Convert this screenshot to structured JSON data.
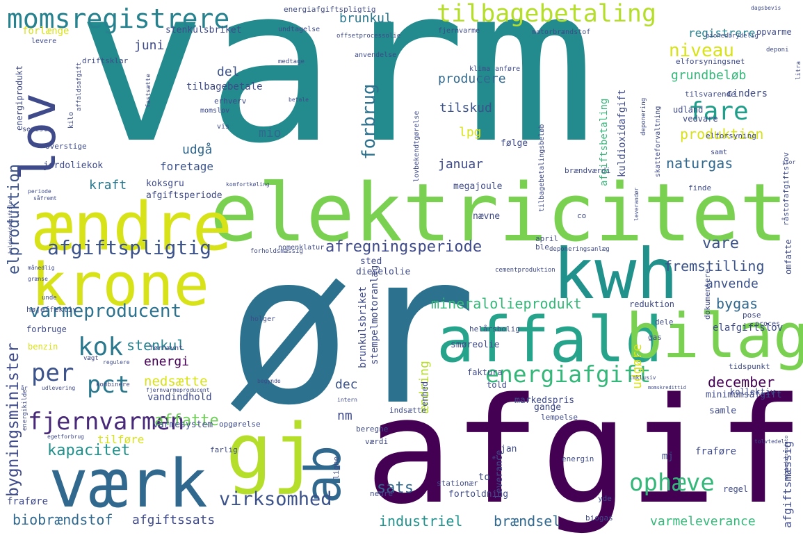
{
  "palette": {
    "background": "#ffffff",
    "purple": "#440154",
    "indigo": "#3b528b",
    "blue": "#31688e",
    "teal": "#21918c",
    "aqua": "#26a38b",
    "green": "#35b779",
    "lime": "#7ad151",
    "yellow": "#d8e219",
    "yellow2": "#fde725"
  },
  "words": [
    {
      "text": "varm",
      "weight": 1.0,
      "color": "#238a8d"
    },
    {
      "text": "ør",
      "weight": 0.93,
      "color": "#2c718e"
    },
    {
      "text": "afgift",
      "weight": 0.78,
      "color": "#440154"
    },
    {
      "text": "elektricitet",
      "weight": 0.52,
      "color": "#7ad151"
    },
    {
      "text": "ændre",
      "weight": 0.42,
      "color": "#d8e219"
    },
    {
      "text": "kwh",
      "weight": 0.4,
      "color": "#21918c"
    },
    {
      "text": "krone",
      "weight": 0.38,
      "color": "#d8e219"
    },
    {
      "text": "affald",
      "weight": 0.36,
      "color": "#26a38b"
    },
    {
      "text": "bilag",
      "weight": 0.36,
      "color": "#7ad151"
    },
    {
      "text": "værk",
      "weight": 0.33,
      "color": "#31688e"
    },
    {
      "text": "gj",
      "weight": 0.32,
      "color": "#b5de2b"
    },
    {
      "text": "ab",
      "weight": 0.3,
      "color": "#31688e"
    },
    {
      "text": "lov",
      "weight": 0.28,
      "color": "#3e4a89"
    },
    {
      "text": "momsregistrere",
      "weight": 0.2,
      "color": "#26828e"
    },
    {
      "text": "tilbagebetaling",
      "weight": 0.17,
      "color": "#b5de2b"
    },
    {
      "text": "fjernvarmen",
      "weight": 0.17,
      "color": "#482878"
    },
    {
      "text": "energiafgift",
      "weight": 0.16,
      "color": "#35b779"
    },
    {
      "text": "pct",
      "weight": 0.16,
      "color": "#2a788e"
    },
    {
      "text": "per",
      "weight": 0.16,
      "color": "#3b528b"
    },
    {
      "text": "ophæve",
      "weight": 0.15,
      "color": "#35b779"
    },
    {
      "text": "kok",
      "weight": 0.15,
      "color": "#2a788e"
    },
    {
      "text": "fare",
      "weight": 0.15,
      "color": "#1f9e89"
    },
    {
      "text": "afgiftspligtig",
      "weight": 0.14,
      "color": "#3b528b"
    },
    {
      "text": "varmeproducent",
      "weight": 0.13,
      "color": "#2c718e"
    },
    {
      "text": "virksomhed",
      "weight": 0.13,
      "color": "#3b528b"
    },
    {
      "text": "niveau",
      "weight": 0.12,
      "color": "#d8e219"
    },
    {
      "text": "forbrug",
      "weight": 0.12,
      "color": "#2c718e"
    },
    {
      "text": "bygningsminister",
      "weight": 0.11,
      "color": "#3e4a89"
    },
    {
      "text": "kapacitet",
      "weight": 0.11,
      "color": "#21918c"
    },
    {
      "text": "afregningsperiode",
      "weight": 0.11,
      "color": "#3e4a89"
    },
    {
      "text": "elproduktion",
      "weight": 0.11,
      "color": "#3b528b"
    },
    {
      "text": "affatte",
      "weight": 0.11,
      "color": "#6ece58"
    },
    {
      "text": "sats",
      "weight": 0.11,
      "color": "#31688e"
    },
    {
      "text": "biobrændstof",
      "weight": 0.1,
      "color": "#31688e"
    },
    {
      "text": "mineralolieprodukt",
      "weight": 0.1,
      "color": "#35b779"
    },
    {
      "text": "fremstilling",
      "weight": 0.1,
      "color": "#3b528b"
    },
    {
      "text": "industriel",
      "weight": 0.1,
      "color": "#21918c"
    },
    {
      "text": "brændsel",
      "weight": 0.1,
      "color": "#31688e"
    },
    {
      "text": "varmeleverance",
      "weight": 0.09,
      "color": "#35b779"
    },
    {
      "text": "produktion",
      "weight": 0.1,
      "color": "#d8e219"
    },
    {
      "text": "grundbeløb",
      "weight": 0.09,
      "color": "#35b779"
    },
    {
      "text": "naturgas",
      "weight": 0.09,
      "color": "#31688e"
    },
    {
      "text": "stenkul",
      "weight": 0.09,
      "color": "#26828e"
    },
    {
      "text": "december",
      "weight": 0.09,
      "color": "#440154"
    },
    {
      "text": "nedsætte",
      "weight": 0.09,
      "color": "#d8e219"
    },
    {
      "text": "vare",
      "weight": 0.09,
      "color": "#3b528b"
    },
    {
      "text": "anvende",
      "weight": 0.09,
      "color": "#3b528b"
    },
    {
      "text": "bygas",
      "weight": 0.09,
      "color": "#31688e"
    },
    {
      "text": "registrere",
      "weight": 0.08,
      "color": "#26828e"
    },
    {
      "text": "brunkul",
      "weight": 0.08,
      "color": "#2a788e"
    },
    {
      "text": "producere",
      "weight": 0.08,
      "color": "#31688e"
    },
    {
      "text": "tilskud",
      "weight": 0.08,
      "color": "#3b528b"
    },
    {
      "text": "januar",
      "weight": 0.08,
      "color": "#3e4a89"
    },
    {
      "text": "energi",
      "weight": 0.08,
      "color": "#440154"
    },
    {
      "text": "mio",
      "weight": 0.08,
      "color": "#31688e"
    },
    {
      "text": "udgå",
      "weight": 0.08,
      "color": "#31688e"
    },
    {
      "text": "kraft",
      "weight": 0.08,
      "color": "#2a788e"
    },
    {
      "text": "lpg",
      "weight": 0.08,
      "color": "#d8e219"
    },
    {
      "text": "juni",
      "weight": 0.07,
      "color": "#3e4a89"
    },
    {
      "text": "del",
      "weight": 0.07,
      "color": "#3b528b"
    },
    {
      "text": "dec",
      "weight": 0.07,
      "color": "#3b528b"
    },
    {
      "text": "nm",
      "weight": 0.07,
      "color": "#3e4a89"
    },
    {
      "text": "udgøre",
      "weight": 0.07,
      "color": "#d8e219"
    },
    {
      "text": "ændring",
      "weight": 0.07,
      "color": "#b5de2b"
    },
    {
      "text": "elafgiftslov",
      "weight": 0.06,
      "color": "#3e4a89"
    },
    {
      "text": "afgiftsmæssig",
      "weight": 0.06,
      "color": "#3e4a89"
    },
    {
      "text": "afgiftssats",
      "weight": 0.06,
      "color": "#3e4a89"
    },
    {
      "text": "tilføre",
      "weight": 0.06,
      "color": "#d8e219"
    },
    {
      "text": "vandindhold",
      "weight": 0.06,
      "color": "#3e4a89"
    },
    {
      "text": "foretage",
      "weight": 0.06,
      "color": "#3b528b"
    },
    {
      "text": "kuldioxidafgift",
      "weight": 0.06,
      "color": "#3e4a89"
    },
    {
      "text": "afgiftsbetaling",
      "weight": 0.06,
      "color": "#35b779"
    },
    {
      "text": "dieselolie",
      "weight": 0.05,
      "color": "#3e4a89"
    },
    {
      "text": "smøreolie",
      "weight": 0.05,
      "color": "#3e4a89"
    },
    {
      "text": "markedspris",
      "weight": 0.05,
      "color": "#3e4a89"
    },
    {
      "text": "minimumsafgift",
      "weight": 0.05,
      "color": "#3e4a89"
    },
    {
      "text": "tilbagebetale",
      "weight": 0.05,
      "color": "#3e4a89"
    },
    {
      "text": "stenkulsbriket",
      "weight": 0.05,
      "color": "#3e4a89"
    },
    {
      "text": "brunkulsbriket",
      "weight": 0.05,
      "color": "#3e4a89"
    },
    {
      "text": "stempelmotoranlæg",
      "weight": 0.05,
      "color": "#3e4a89"
    },
    {
      "text": "varmesystem",
      "weight": 0.05,
      "color": "#3e4a89"
    },
    {
      "text": "jordoliekok",
      "weight": 0.05,
      "color": "#3e4a89"
    },
    {
      "text": "koksgru",
      "weight": 0.05,
      "color": "#3e4a89"
    },
    {
      "text": "afgiftsperiode",
      "weight": 0.05,
      "color": "#3e4a89"
    },
    {
      "text": "megajoule",
      "weight": 0.05,
      "color": "#3e4a89"
    },
    {
      "text": "opvarme",
      "weight": 0.04,
      "color": "#3e4a89"
    },
    {
      "text": "udland",
      "weight": 0.04,
      "color": "#3e4a89"
    },
    {
      "text": "vedvare",
      "weight": 0.04,
      "color": "#3e4a89"
    },
    {
      "text": "cinders",
      "weight": 0.05,
      "color": "#3e4a89"
    },
    {
      "text": "forlænge",
      "weight": 0.05,
      "color": "#d8e219"
    },
    {
      "text": "energiprodukt",
      "weight": 0.05,
      "color": "#3e4a89"
    },
    {
      "text": "forbruge",
      "weight": 0.05,
      "color": "#3e4a89"
    },
    {
      "text": "benzin",
      "weight": 0.05,
      "color": "#d8e219"
    },
    {
      "text": "fraføre",
      "weight": 0.05,
      "color": "#3e4a89"
    },
    {
      "text": "fraføre",
      "weight": 0.05,
      "color": "#3e4a89"
    },
    {
      "text": "leverance",
      "weight": 0.05,
      "color": "#3e4a89"
    },
    {
      "text": "fortoldning",
      "weight": 0.05,
      "color": "#3e4a89"
    },
    {
      "text": "samle",
      "weight": 0.05,
      "color": "#3e4a89"
    },
    {
      "text": "gange",
      "weight": 0.05,
      "color": "#3e4a89"
    },
    {
      "text": "enhed",
      "weight": 0.04,
      "color": "#3e4a89"
    },
    {
      "text": "faktura",
      "weight": 0.04,
      "color": "#3e4a89"
    },
    {
      "text": "told",
      "weight": 0.04,
      "color": "#3e4a89"
    },
    {
      "text": "kollektiv",
      "weight": 0.04,
      "color": "#3e4a89"
    },
    {
      "text": "omfatte",
      "weight": 0.04,
      "color": "#3e4a89"
    },
    {
      "text": "reduktion",
      "weight": 0.04,
      "color": "#3e4a89"
    },
    {
      "text": "nævne",
      "weight": 0.04,
      "color": "#3e4a89"
    },
    {
      "text": "sted",
      "weight": 0.04,
      "color": "#3e4a89"
    },
    {
      "text": "følge",
      "weight": 0.04,
      "color": "#3e4a89"
    },
    {
      "text": "jan",
      "weight": 0.04,
      "color": "#3e4a89"
    },
    {
      "text": "mj",
      "weight": 0.04,
      "color": "#3e4a89"
    },
    {
      "text": "to",
      "weight": 0.04,
      "color": "#3e4a89"
    },
    {
      "text": "regel",
      "weight": 0.04,
      "color": "#3e4a89"
    },
    {
      "text": "yde",
      "weight": 0.03,
      "color": "#3e4a89"
    },
    {
      "text": "biogas",
      "weight": 0.03,
      "color": "#3e4a89"
    },
    {
      "text": "værdi",
      "weight": 0.03,
      "color": "#3e4a89"
    },
    {
      "text": "farlig",
      "weight": 0.03,
      "color": "#3e4a89"
    },
    {
      "text": "ligne",
      "weight": 0.03,
      "color": "#3e4a89"
    },
    {
      "text": "nedre",
      "weight": 0.03,
      "color": "#3e4a89"
    },
    {
      "text": "stationær",
      "weight": 0.03,
      "color": "#3e4a89"
    },
    {
      "text": "beregne",
      "weight": 0.03,
      "color": "#3e4a89"
    },
    {
      "text": "energin",
      "weight": 0.03,
      "color": "#3e4a89"
    },
    {
      "text": "opgørelse",
      "weight": 0.03,
      "color": "#3e4a89"
    },
    {
      "text": "indsætte",
      "weight": 0.03,
      "color": "#3e4a89"
    },
    {
      "text": "lempelse",
      "weight": 0.03,
      "color": "#3e4a89"
    },
    {
      "text": "dele",
      "weight": 0.03,
      "color": "#3e4a89"
    },
    {
      "text": "gas",
      "weight": 0.03,
      "color": "#3e4a89"
    },
    {
      "text": "tidspunkt",
      "weight": 0.03,
      "color": "#3e4a89"
    },
    {
      "text": "dokumentere",
      "weight": 0.03,
      "color": "#3e4a89"
    },
    {
      "text": "pose",
      "weight": 0.03,
      "color": "#3e4a89"
    },
    {
      "text": "proces",
      "weight": 0.03,
      "color": "#3e4a89"
    },
    {
      "text": "helårsbolig",
      "weight": 0.03,
      "color": "#3e4a89"
    },
    {
      "text": "holger",
      "weight": 0.03,
      "color": "#3e4a89"
    },
    {
      "text": "cementproduktion",
      "weight": 0.02,
      "color": "#3e4a89"
    },
    {
      "text": "april",
      "weight": 0.03,
      "color": "#3e4a89"
    },
    {
      "text": "ble",
      "weight": 0.03,
      "color": "#3e4a89"
    },
    {
      "text": "deponeringsanlæg",
      "weight": 0.02,
      "color": "#3e4a89"
    },
    {
      "text": "nomenklatur",
      "weight": 0.03,
      "color": "#3e4a89"
    },
    {
      "text": "forholdsmæssig",
      "weight": 0.02,
      "color": "#3e4a89"
    },
    {
      "text": "brændværdi",
      "weight": 0.03,
      "color": "#3e4a89"
    },
    {
      "text": "finde",
      "weight": 0.03,
      "color": "#3e4a89"
    },
    {
      "text": "co",
      "weight": 0.03,
      "color": "#3e4a89"
    },
    {
      "text": "leverandør",
      "weight": 0.02,
      "color": "#3e4a89"
    },
    {
      "text": "råstofafgiftslov",
      "weight": 0.03,
      "color": "#3e4a89"
    },
    {
      "text": "samt",
      "weight": 0.03,
      "color": "#3e4a89"
    },
    {
      "text": "stor",
      "weight": 0.02,
      "color": "#3e4a89"
    },
    {
      "text": "elforsyning",
      "weight": 0.03,
      "color": "#3e4a89"
    },
    {
      "text": "skatteforvaltning",
      "weight": 0.03,
      "color": "#3e4a89"
    },
    {
      "text": "tilbagebetalingsbeløb",
      "weight": 0.03,
      "color": "#3e4a89"
    },
    {
      "text": "lovbekendtgørelse",
      "weight": 0.03,
      "color": "#3e4a89"
    },
    {
      "text": "komfortkøling",
      "weight": 0.02,
      "color": "#3e4a89"
    },
    {
      "text": "deponering",
      "weight": 0.02,
      "color": "#3e4a89"
    },
    {
      "text": "tilsvarende",
      "weight": 0.03,
      "color": "#3e4a89"
    },
    {
      "text": "elforsyningsnet",
      "weight": 0.03,
      "color": "#3e4a89"
    },
    {
      "text": "deponi",
      "weight": 0.02,
      "color": "#3e4a89"
    },
    {
      "text": "litra",
      "weight": 0.02,
      "color": "#3e4a89"
    },
    {
      "text": "klima",
      "weight": 0.03,
      "color": "#3e4a89"
    },
    {
      "text": "anføre",
      "weight": 0.03,
      "color": "#3e4a89"
    },
    {
      "text": "medtage",
      "weight": 0.02,
      "color": "#3e4a89"
    },
    {
      "text": "anvendelse",
      "weight": 0.03,
      "color": "#3e4a89"
    },
    {
      "text": "offsetprocessolie",
      "weight": 0.02,
      "color": "#3e4a89"
    },
    {
      "text": "fjernvarme",
      "weight": 0.03,
      "color": "#3e4a89"
    },
    {
      "text": "motorbrændstof",
      "weight": 0.03,
      "color": "#3e4a89"
    },
    {
      "text": "bionedbrydelig",
      "weight": 0.02,
      "color": "#3e4a89"
    },
    {
      "text": "dagsbevis",
      "weight": 0.02,
      "color": "#3e4a89"
    },
    {
      "text": "undtagelse",
      "weight": 0.03,
      "color": "#3e4a89"
    },
    {
      "text": "energiafgiftspligtig",
      "weight": 0.03,
      "color": "#3e4a89"
    },
    {
      "text": "levere",
      "weight": 0.03,
      "color": "#3e4a89"
    },
    {
      "text": "driftsklar",
      "weight": 0.03,
      "color": "#3e4a89"
    },
    {
      "text": "erhverv",
      "weight": 0.03,
      "color": "#3e4a89"
    },
    {
      "text": "momslov",
      "weight": 0.03,
      "color": "#3e4a89"
    },
    {
      "text": "vis",
      "weight": 0.03,
      "color": "#3e4a89"
    },
    {
      "text": "betale",
      "weight": 0.02,
      "color": "#3e4a89"
    },
    {
      "text": "affaldsafgift",
      "weight": 0.02,
      "color": "#3e4a89"
    },
    {
      "text": "fastsætte",
      "weight": 0.02,
      "color": "#3e4a89"
    },
    {
      "text": "kilo",
      "weight": 0.03,
      "color": "#3e4a89"
    },
    {
      "text": "senest",
      "weight": 0.03,
      "color": "#3e4a89"
    },
    {
      "text": "overstige",
      "weight": 0.03,
      "color": "#3e4a89"
    },
    {
      "text": "periode",
      "weight": 0.02,
      "color": "#3e4a89"
    },
    {
      "text": "såfremt",
      "weight": 0.02,
      "color": "#3e4a89"
    },
    {
      "text": "kuldioxidafgiftslov",
      "weight": 0.02,
      "color": "#3e4a89"
    },
    {
      "text": "månedlig",
      "weight": 0.02,
      "color": "#3e4a89"
    },
    {
      "text": "grænse",
      "weight": 0.02,
      "color": "#3e4a89"
    },
    {
      "text": "unde",
      "weight": 0.02,
      "color": "#3e4a89"
    },
    {
      "text": "højeffektiv",
      "weight": 0.03,
      "color": "#3e4a89"
    },
    {
      "text": "førnævnt",
      "weight": 0.03,
      "color": "#3e4a89"
    },
    {
      "text": "vægt",
      "weight": 0.02,
      "color": "#3e4a89"
    },
    {
      "text": "regulere",
      "weight": 0.02,
      "color": "#3e4a89"
    },
    {
      "text": "kombinere",
      "weight": 0.02,
      "color": "#3e4a89"
    },
    {
      "text": "udlevering",
      "weight": 0.02,
      "color": "#3e4a89"
    },
    {
      "text": "fjernvarmeproducent",
      "weight": 0.02,
      "color": "#3e4a89"
    },
    {
      "text": "år",
      "weight": 0.02,
      "color": "#3e4a89"
    },
    {
      "text": "egetforbrug",
      "weight": 0.02,
      "color": "#3e4a89"
    },
    {
      "text": "energikilde",
      "weight": 0.02,
      "color": "#3e4a89"
    },
    {
      "text": "begynde",
      "weight": 0.02,
      "color": "#3e4a89"
    },
    {
      "text": "intern",
      "weight": 0.02,
      "color": "#3e4a89"
    },
    {
      "text": "inklusiv",
      "weight": 0.02,
      "color": "#3e4a89"
    },
    {
      "text": "momskredittid",
      "weight": 0.02,
      "color": "#3e4a89"
    },
    {
      "text": "tolvtedel",
      "weight": 0.02,
      "color": "#3e4a89"
    },
    {
      "text": "udstedelsesdato",
      "weight": 0.02,
      "color": "#3e4a89"
    },
    {
      "text": "el",
      "weight": 0.02,
      "color": "#3e4a89"
    }
  ]
}
